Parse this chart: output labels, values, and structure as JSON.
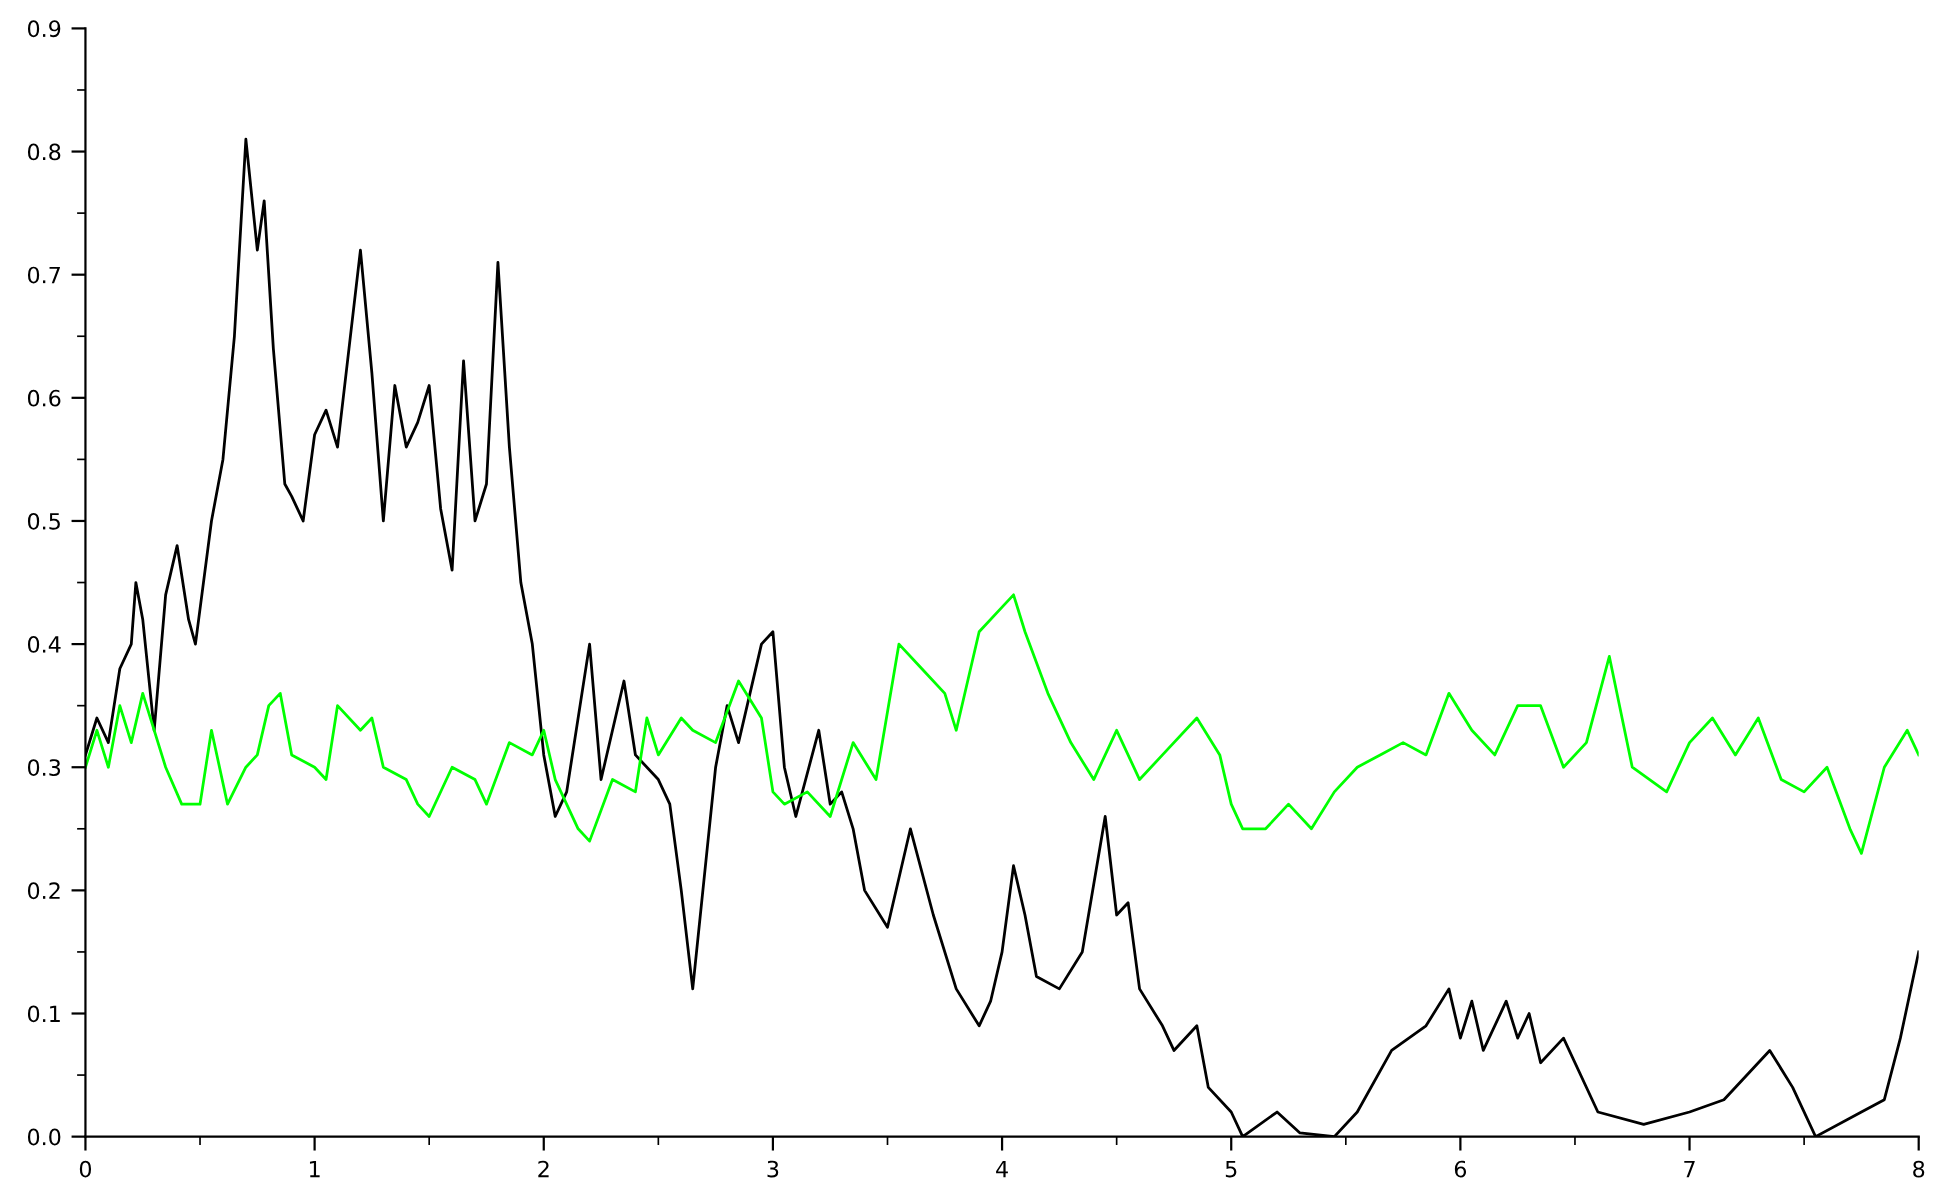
{
  "chart_data": {
    "type": "line",
    "xlim": [
      0,
      8
    ],
    "ylim": [
      0,
      0.9
    ],
    "xticks": [
      0,
      {
        "value": 0.5,
        "label": null
      },
      1,
      {
        "value": 1.5,
        "label": null
      },
      2,
      {
        "value": 2.5,
        "label": null
      },
      3,
      {
        "value": 3.5,
        "label": null
      },
      4,
      {
        "value": 4.5,
        "label": null
      },
      5,
      {
        "value": 5.5,
        "label": null
      },
      6,
      {
        "value": 6.5,
        "label": null
      },
      7,
      {
        "value": 7.5,
        "label": null
      },
      8
    ],
    "yticks": [
      {
        "value": 0,
        "label": "0.0"
      },
      {
        "value": 0.05,
        "label": null
      },
      0.1,
      {
        "value": 0.15,
        "label": null
      },
      0.2,
      {
        "value": 0.25,
        "label": null
      },
      0.3,
      {
        "value": 0.35,
        "label": null
      },
      0.4,
      {
        "value": 0.45,
        "label": null
      },
      0.5,
      {
        "value": 0.55,
        "label": null
      },
      0.6,
      {
        "value": 0.65,
        "label": null
      },
      0.7,
      {
        "value": 0.75,
        "label": null
      },
      0.8,
      {
        "value": 0.85,
        "label": null
      },
      0.9
    ],
    "grid": false,
    "marker": "none",
    "line_style": "solid",
    "series": [
      {
        "color": "#000000",
        "x": [
          0,
          0.05,
          0.1,
          0.15,
          0.2,
          0.22,
          0.25,
          0.3,
          0.35,
          0.4,
          0.45,
          0.48,
          0.55,
          0.6,
          0.65,
          0.7,
          0.75,
          0.78,
          0.82,
          0.87,
          0.9,
          0.95,
          1.0,
          1.05,
          1.1,
          1.15,
          1.2,
          1.25,
          1.3,
          1.35,
          1.4,
          1.45,
          1.5,
          1.55,
          1.6,
          1.65,
          1.7,
          1.75,
          1.8,
          1.85,
          1.9,
          1.95,
          2.0,
          2.05,
          2.1,
          2.2,
          2.25,
          2.35,
          2.4,
          2.5,
          2.55,
          2.6,
          2.65,
          2.75,
          2.8,
          2.85,
          2.95,
          3.0,
          3.05,
          3.1,
          3.2,
          3.25,
          3.3,
          3.35,
          3.4,
          3.5,
          3.6,
          3.7,
          3.8,
          3.9,
          3.95,
          4.0,
          4.05,
          4.1,
          4.15,
          4.25,
          4.35,
          4.45,
          4.5,
          4.55,
          4.6,
          4.7,
          4.75,
          4.85,
          4.9,
          5.0,
          5.05,
          5.2,
          5.3,
          5.45,
          5.55,
          5.7,
          5.85,
          5.95,
          6.0,
          6.05,
          6.1,
          6.2,
          6.25,
          6.3,
          6.35,
          6.45,
          6.6,
          6.8,
          7.0,
          7.15,
          7.35,
          7.45,
          7.55,
          7.75,
          7.85,
          7.92,
          8.0
        ],
        "values": [
          0.31,
          0.34,
          0.32,
          0.38,
          0.4,
          0.45,
          0.42,
          0.33,
          0.44,
          0.48,
          0.42,
          0.4,
          0.5,
          0.55,
          0.65,
          0.81,
          0.72,
          0.76,
          0.64,
          0.53,
          0.52,
          0.5,
          0.57,
          0.59,
          0.56,
          0.64,
          0.72,
          0.62,
          0.5,
          0.61,
          0.56,
          0.58,
          0.61,
          0.51,
          0.46,
          0.63,
          0.5,
          0.53,
          0.71,
          0.56,
          0.45,
          0.4,
          0.31,
          0.26,
          0.28,
          0.4,
          0.29,
          0.37,
          0.31,
          0.29,
          0.27,
          0.2,
          0.12,
          0.3,
          0.35,
          0.32,
          0.4,
          0.41,
          0.3,
          0.26,
          0.33,
          0.27,
          0.28,
          0.25,
          0.2,
          0.17,
          0.25,
          0.18,
          0.12,
          0.09,
          0.11,
          0.15,
          0.22,
          0.18,
          0.13,
          0.12,
          0.15,
          0.26,
          0.18,
          0.19,
          0.12,
          0.09,
          0.07,
          0.09,
          0.04,
          0.02,
          0.0,
          0.02,
          0.003,
          0.0,
          0.02,
          0.07,
          0.09,
          0.12,
          0.08,
          0.11,
          0.07,
          0.11,
          0.08,
          0.1,
          0.06,
          0.08,
          0.02,
          0.01,
          0.02,
          0.03,
          0.07,
          0.04,
          0.0,
          0.02,
          0.03,
          0.08,
          0.15
        ]
      },
      {
        "color": "#00ff00",
        "x": [
          0,
          0.05,
          0.1,
          0.15,
          0.2,
          0.25,
          0.35,
          0.42,
          0.5,
          0.55,
          0.62,
          0.7,
          0.75,
          0.8,
          0.85,
          0.9,
          1.0,
          1.05,
          1.1,
          1.2,
          1.25,
          1.3,
          1.4,
          1.45,
          1.5,
          1.6,
          1.7,
          1.75,
          1.85,
          1.95,
          2.0,
          2.05,
          2.15,
          2.2,
          2.3,
          2.4,
          2.45,
          2.5,
          2.6,
          2.65,
          2.75,
          2.85,
          2.95,
          3.0,
          3.05,
          3.15,
          3.25,
          3.35,
          3.45,
          3.55,
          3.65,
          3.75,
          3.8,
          3.9,
          4.0,
          4.05,
          4.1,
          4.2,
          4.3,
          4.4,
          4.5,
          4.6,
          4.7,
          4.85,
          4.95,
          5.0,
          5.05,
          5.15,
          5.25,
          5.35,
          5.45,
          5.55,
          5.65,
          5.75,
          5.85,
          5.95,
          6.05,
          6.15,
          6.25,
          6.35,
          6.45,
          6.55,
          6.65,
          6.75,
          6.9,
          7.0,
          7.1,
          7.2,
          7.3,
          7.4,
          7.5,
          7.6,
          7.7,
          7.75,
          7.85,
          7.95,
          8.0
        ],
        "values": [
          0.3,
          0.33,
          0.3,
          0.35,
          0.32,
          0.36,
          0.3,
          0.27,
          0.27,
          0.33,
          0.27,
          0.3,
          0.31,
          0.35,
          0.36,
          0.31,
          0.3,
          0.29,
          0.35,
          0.33,
          0.34,
          0.3,
          0.29,
          0.27,
          0.26,
          0.3,
          0.29,
          0.27,
          0.32,
          0.31,
          0.33,
          0.29,
          0.25,
          0.24,
          0.29,
          0.28,
          0.34,
          0.31,
          0.34,
          0.33,
          0.32,
          0.37,
          0.34,
          0.28,
          0.27,
          0.28,
          0.26,
          0.32,
          0.29,
          0.4,
          0.38,
          0.36,
          0.33,
          0.41,
          0.43,
          0.44,
          0.41,
          0.36,
          0.32,
          0.29,
          0.33,
          0.29,
          0.31,
          0.34,
          0.31,
          0.27,
          0.25,
          0.25,
          0.27,
          0.25,
          0.28,
          0.3,
          0.31,
          0.32,
          0.31,
          0.36,
          0.33,
          0.31,
          0.35,
          0.35,
          0.3,
          0.32,
          0.39,
          0.3,
          0.28,
          0.32,
          0.34,
          0.31,
          0.34,
          0.29,
          0.28,
          0.3,
          0.25,
          0.23,
          0.3,
          0.33,
          0.31
        ]
      }
    ]
  }
}
